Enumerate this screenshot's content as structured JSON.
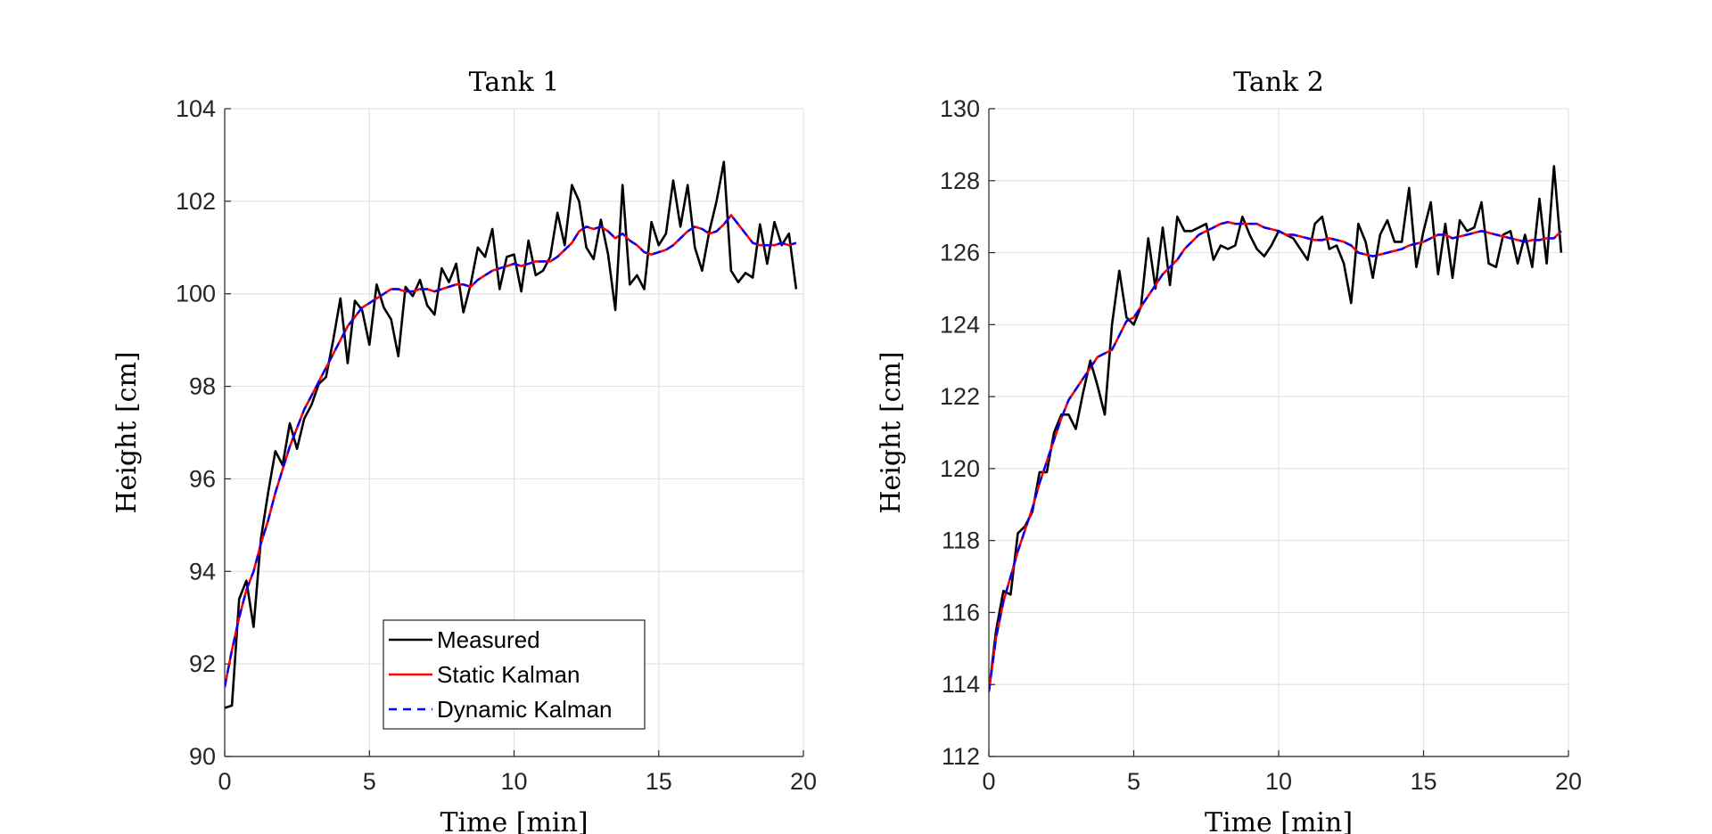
{
  "chart_data": [
    {
      "type": "line",
      "title": "Tank 1",
      "xlabel": "Time [min]",
      "ylabel": "Height [cm]",
      "xlim": [
        0,
        20
      ],
      "ylim": [
        90,
        104
      ],
      "xticks": [
        "0",
        "5",
        "10",
        "15",
        "20"
      ],
      "yticks": [
        "90",
        "92",
        "94",
        "96",
        "98",
        "100",
        "102",
        "104"
      ],
      "grid": true,
      "legend": {
        "placement": "bottom-center",
        "entries": [
          "Measured",
          "Static Kalman",
          "Dynamic Kalman"
        ]
      },
      "x": [
        0,
        0.25,
        0.5,
        0.75,
        1,
        1.25,
        1.5,
        1.75,
        2,
        2.25,
        2.5,
        2.75,
        3,
        3.25,
        3.5,
        3.75,
        4,
        4.25,
        4.5,
        4.75,
        5,
        5.25,
        5.5,
        5.75,
        6,
        6.25,
        6.5,
        6.75,
        7,
        7.25,
        7.5,
        7.75,
        8,
        8.25,
        8.5,
        8.75,
        9,
        9.25,
        9.5,
        9.75,
        10,
        10.25,
        10.5,
        10.75,
        11,
        11.25,
        11.5,
        11.75,
        12,
        12.25,
        12.5,
        12.75,
        13,
        13.25,
        13.5,
        13.75,
        14,
        14.25,
        14.5,
        14.75,
        15,
        15.25,
        15.5,
        15.75,
        16,
        16.25,
        16.5,
        16.75,
        17,
        17.25,
        17.5,
        17.75,
        18,
        18.25,
        18.5,
        18.75,
        19,
        19.25,
        19.5,
        19.75
      ],
      "series": [
        {
          "name": "Measured",
          "color": "#000000",
          "style": "solid",
          "values": [
            91.05,
            91.1,
            93.4,
            93.8,
            92.8,
            94.7,
            95.7,
            96.6,
            96.3,
            97.2,
            96.65,
            97.3,
            97.6,
            98.05,
            98.2,
            99,
            99.9,
            98.5,
            99.85,
            99.65,
            98.9,
            100.2,
            99.7,
            99.45,
            98.65,
            100.15,
            99.95,
            100.3,
            99.75,
            99.55,
            100.55,
            100.25,
            100.65,
            99.6,
            100.2,
            101,
            100.8,
            101.4,
            100.1,
            100.8,
            100.85,
            100.05,
            101.15,
            100.4,
            100.5,
            100.8,
            101.75,
            101.05,
            102.35,
            102,
            101,
            100.75,
            101.6,
            100.85,
            99.65,
            102.35,
            100.2,
            100.4,
            100.1,
            101.55,
            101.05,
            101.3,
            102.45,
            101.45,
            102.35,
            101,
            100.5,
            101.35,
            102,
            102.85,
            100.5,
            100.25,
            100.45,
            100.35,
            101.5,
            100.65,
            101.55,
            101.05,
            101.3,
            100.1
          ]
        },
        {
          "name": "Static Kalman",
          "color": "#ff0000",
          "style": "solid",
          "values": [
            91.5,
            92.3,
            93,
            93.6,
            94,
            94.6,
            95.1,
            95.7,
            96.2,
            96.7,
            97.1,
            97.5,
            97.8,
            98.1,
            98.4,
            98.7,
            99,
            99.3,
            99.5,
            99.7,
            99.8,
            99.9,
            100,
            100.1,
            100.1,
            100.05,
            100.05,
            100.1,
            100.1,
            100.05,
            100.1,
            100.15,
            100.2,
            100.2,
            100.15,
            100.3,
            100.4,
            100.5,
            100.55,
            100.6,
            100.65,
            100.6,
            100.65,
            100.7,
            100.7,
            100.7,
            100.8,
            100.95,
            101.1,
            101.35,
            101.45,
            101.4,
            101.45,
            101.35,
            101.2,
            101.3,
            101.15,
            101.05,
            100.9,
            100.85,
            100.9,
            100.95,
            101.05,
            101.2,
            101.35,
            101.45,
            101.4,
            101.3,
            101.35,
            101.5,
            101.7,
            101.5,
            101.3,
            101.1,
            101.05,
            101.05,
            101.05,
            101.1,
            101.05,
            101.1
          ]
        },
        {
          "name": "Dynamic Kalman",
          "color": "#0000ff",
          "style": "dashed",
          "values": [
            91.5,
            92.3,
            93,
            93.6,
            94,
            94.6,
            95.1,
            95.7,
            96.2,
            96.7,
            97.1,
            97.5,
            97.8,
            98.1,
            98.4,
            98.7,
            99,
            99.3,
            99.5,
            99.7,
            99.8,
            99.9,
            100,
            100.1,
            100.1,
            100.05,
            100.05,
            100.1,
            100.1,
            100.05,
            100.1,
            100.15,
            100.2,
            100.2,
            100.15,
            100.3,
            100.4,
            100.5,
            100.55,
            100.6,
            100.65,
            100.6,
            100.65,
            100.7,
            100.7,
            100.7,
            100.8,
            100.95,
            101.1,
            101.35,
            101.45,
            101.4,
            101.45,
            101.35,
            101.2,
            101.3,
            101.15,
            101.05,
            100.9,
            100.85,
            100.9,
            100.95,
            101.05,
            101.2,
            101.35,
            101.45,
            101.4,
            101.3,
            101.35,
            101.5,
            101.7,
            101.5,
            101.3,
            101.1,
            101.05,
            101.05,
            101.05,
            101.1,
            101.05,
            101.1
          ]
        }
      ]
    },
    {
      "type": "line",
      "title": "Tank 2",
      "xlabel": "Time [min]",
      "ylabel": "Height [cm]",
      "xlim": [
        0,
        20
      ],
      "ylim": [
        112,
        130
      ],
      "xticks": [
        "0",
        "5",
        "10",
        "15",
        "20"
      ],
      "yticks": [
        "112",
        "114",
        "116",
        "118",
        "120",
        "122",
        "124",
        "126",
        "128",
        "130"
      ],
      "grid": true,
      "x": [
        0,
        0.25,
        0.5,
        0.75,
        1,
        1.25,
        1.5,
        1.75,
        2,
        2.25,
        2.5,
        2.75,
        3,
        3.25,
        3.5,
        3.75,
        4,
        4.25,
        4.5,
        4.75,
        5,
        5.25,
        5.5,
        5.75,
        6,
        6.25,
        6.5,
        6.75,
        7,
        7.25,
        7.5,
        7.75,
        8,
        8.25,
        8.5,
        8.75,
        9,
        9.25,
        9.5,
        9.75,
        10,
        10.25,
        10.5,
        10.75,
        11,
        11.25,
        11.5,
        11.75,
        12,
        12.25,
        12.5,
        12.75,
        13,
        13.25,
        13.5,
        13.75,
        14,
        14.25,
        14.5,
        14.75,
        15,
        15.25,
        15.5,
        15.75,
        16,
        16.25,
        16.5,
        16.75,
        17,
        17.25,
        17.5,
        17.75,
        18,
        18.25,
        18.5,
        18.75,
        19,
        19.25,
        19.5,
        19.75
      ],
      "series": [
        {
          "name": "Measured",
          "color": "#000000",
          "style": "solid",
          "values": [
            113.8,
            115.5,
            116.6,
            116.5,
            118.2,
            118.4,
            118.8,
            119.9,
            119.9,
            121,
            121.5,
            121.5,
            121.1,
            122.1,
            123,
            122.3,
            121.5,
            124,
            125.5,
            124.2,
            124,
            124.5,
            126.4,
            125,
            126.7,
            125.1,
            127,
            126.6,
            126.6,
            126.7,
            126.8,
            125.8,
            126.2,
            126.1,
            126.2,
            127,
            126.5,
            126.1,
            125.9,
            126.2,
            126.6,
            126.5,
            126.4,
            126.1,
            125.8,
            126.8,
            127,
            126.1,
            126.2,
            125.7,
            124.6,
            126.8,
            126.3,
            125.3,
            126.5,
            126.9,
            126.3,
            126.3,
            127.8,
            125.6,
            126.6,
            127.4,
            125.4,
            126.8,
            125.3,
            126.9,
            126.6,
            126.7,
            127.4,
            125.7,
            125.6,
            126.5,
            126.6,
            125.7,
            126.5,
            125.6,
            127.5,
            125.7,
            128.4,
            126
          ]
        },
        {
          "name": "Static Kalman",
          "color": "#ff0000",
          "style": "solid",
          "values": [
            113.8,
            115.3,
            116.3,
            117,
            117.7,
            118.3,
            118.9,
            119.6,
            120.2,
            120.8,
            121.4,
            121.9,
            122.2,
            122.5,
            122.8,
            123.1,
            123.2,
            123.3,
            123.7,
            124.1,
            124.2,
            124.5,
            124.8,
            125.1,
            125.4,
            125.6,
            125.8,
            126.1,
            126.3,
            126.5,
            126.6,
            126.7,
            126.8,
            126.85,
            126.8,
            126.8,
            126.8,
            126.8,
            126.7,
            126.65,
            126.6,
            126.5,
            126.5,
            126.45,
            126.4,
            126.35,
            126.35,
            126.4,
            126.35,
            126.3,
            126.2,
            126,
            125.95,
            125.9,
            125.95,
            126,
            126.05,
            126.1,
            126.2,
            126.25,
            126.3,
            126.4,
            126.5,
            126.5,
            126.4,
            126.45,
            126.5,
            126.55,
            126.6,
            126.55,
            126.5,
            126.45,
            126.4,
            126.35,
            126.3,
            126.35,
            126.35,
            126.4,
            126.4,
            126.6
          ]
        },
        {
          "name": "Dynamic Kalman",
          "color": "#0000ff",
          "style": "dashed",
          "values": [
            113.8,
            115.3,
            116.3,
            117,
            117.7,
            118.3,
            118.9,
            119.6,
            120.2,
            120.8,
            121.4,
            121.9,
            122.2,
            122.5,
            122.8,
            123.1,
            123.2,
            123.3,
            123.7,
            124.1,
            124.2,
            124.5,
            124.8,
            125.1,
            125.4,
            125.6,
            125.8,
            126.1,
            126.3,
            126.5,
            126.6,
            126.7,
            126.8,
            126.85,
            126.8,
            126.8,
            126.8,
            126.8,
            126.7,
            126.65,
            126.6,
            126.5,
            126.5,
            126.45,
            126.4,
            126.35,
            126.35,
            126.4,
            126.35,
            126.3,
            126.2,
            126,
            125.95,
            125.9,
            125.95,
            126,
            126.05,
            126.1,
            126.2,
            126.25,
            126.3,
            126.4,
            126.5,
            126.5,
            126.4,
            126.45,
            126.5,
            126.55,
            126.6,
            126.55,
            126.5,
            126.45,
            126.4,
            126.35,
            126.3,
            126.35,
            126.35,
            126.4,
            126.4,
            126.6
          ]
        }
      ]
    }
  ]
}
